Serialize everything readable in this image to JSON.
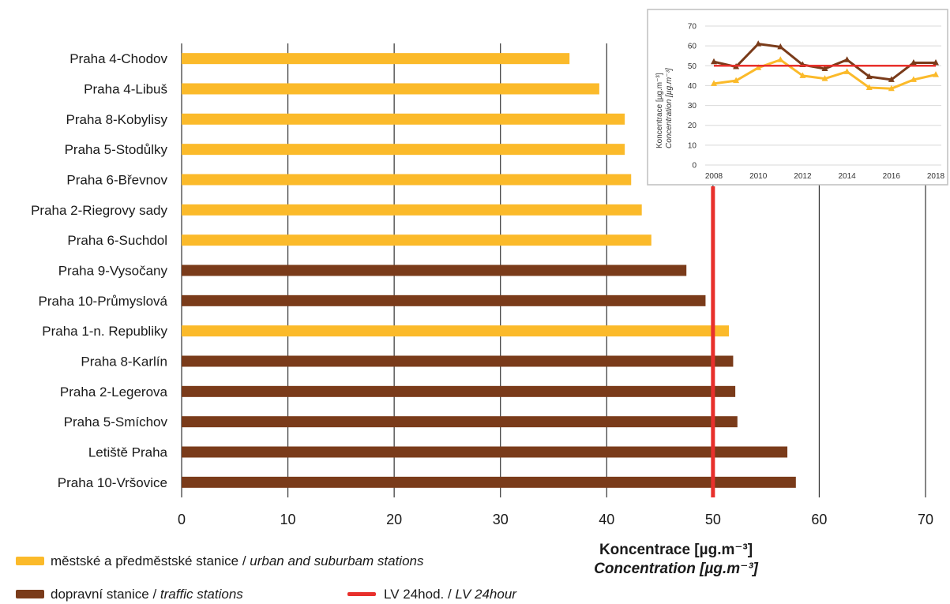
{
  "colors": {
    "urban": "#FBBA2A",
    "traffic": "#7A3B1A",
    "limit": "#E8302C",
    "grid": "#333333"
  },
  "chart_data": [
    {
      "type": "bar",
      "orientation": "horizontal",
      "categories": [
        "Praha 4-Chodov",
        "Praha 4-Libuš",
        "Praha 8-Kobylisy",
        "Praha 5-Stodůlky",
        "Praha 6-Břevnov",
        "Praha 2-Riegrovy sady",
        "Praha 6-Suchdol",
        "Praha 9-Vysočany",
        "Praha 10-Průmyslová",
        "Praha 1-n. Republiky",
        "Praha 8-Karlín",
        "Praha 2-Legerova",
        "Praha 5-Smíchov",
        "Letiště Praha",
        "Praha 10-Vršovice"
      ],
      "values": [
        36.5,
        39.3,
        41.7,
        41.7,
        42.3,
        43.3,
        44.2,
        47.5,
        49.3,
        51.5,
        51.9,
        52.1,
        52.3,
        57.0,
        57.8
      ],
      "station_type": [
        "urban",
        "urban",
        "urban",
        "urban",
        "urban",
        "urban",
        "urban",
        "traffic",
        "traffic",
        "urban",
        "traffic",
        "traffic",
        "traffic",
        "traffic",
        "traffic"
      ],
      "xlim": [
        0,
        70
      ],
      "xticks": [
        0,
        10,
        20,
        30,
        40,
        50,
        60,
        70
      ],
      "limit_value": 50,
      "xlabel": "Koncentrace [µg.m⁻³]",
      "xlabel_en": "Concentration [µg.m⁻³]",
      "grid": "vertical",
      "legend": {
        "placement": "bottom-left",
        "urban_cz": "městské a předměstské stanice / ",
        "urban_en": "urban and suburbam stations",
        "traffic_cz": "dopravní stanice / ",
        "traffic_en": "traffic stations",
        "limit_cz": "LV 24hod. / ",
        "limit_en": "LV 24hour"
      }
    },
    {
      "type": "line",
      "placement": "top-right",
      "x": [
        2008,
        2009,
        2010,
        2011,
        2012,
        2013,
        2014,
        2015,
        2016,
        2017,
        2018
      ],
      "xticks": [
        2008,
        2010,
        2012,
        2014,
        2016,
        2018
      ],
      "ylim": [
        0,
        70
      ],
      "yticks": [
        0,
        10,
        20,
        30,
        40,
        50,
        60,
        70
      ],
      "ylabel": "Koncentrace [µg.m⁻³]",
      "ylabel_en": "Concentration [µg.m⁻³]",
      "series": [
        {
          "key": "traffic",
          "values": [
            52,
            49.5,
            61,
            59.5,
            50.5,
            48.5,
            53,
            44.5,
            43,
            51.5,
            51.5
          ]
        },
        {
          "key": "urban",
          "values": [
            41,
            42.5,
            49,
            53,
            45,
            43.5,
            47,
            39,
            38.5,
            43,
            45.5
          ]
        },
        {
          "key": "limit",
          "values": [
            50,
            50,
            50,
            50,
            50,
            50,
            50,
            50,
            50,
            50,
            50
          ]
        }
      ]
    }
  ]
}
